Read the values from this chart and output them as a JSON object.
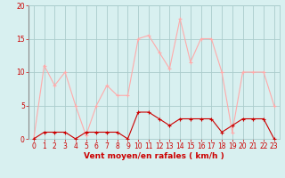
{
  "x": [
    0,
    1,
    2,
    3,
    4,
    5,
    6,
    7,
    8,
    9,
    10,
    11,
    12,
    13,
    14,
    15,
    16,
    17,
    18,
    19,
    20,
    21,
    22,
    23
  ],
  "wind_mean": [
    0,
    1,
    1,
    1,
    0,
    1,
    1,
    1,
    1,
    0,
    4,
    4,
    3,
    2,
    3,
    3,
    3,
    3,
    1,
    2,
    3,
    3,
    3,
    0
  ],
  "wind_gust": [
    0,
    11,
    8,
    10,
    5,
    0.5,
    5,
    8,
    6.5,
    6.5,
    15,
    15.5,
    13,
    10.5,
    18,
    11.5,
    15,
    15,
    10,
    1,
    10,
    10,
    10,
    5
  ],
  "mean_color": "#cc0000",
  "gust_color": "#ffaaaa",
  "bg_color": "#d8f0f0",
  "grid_color": "#aacccc",
  "xlabel": "Vent moyen/en rafales ( km/h )",
  "ylim": [
    0,
    20
  ],
  "yticks": [
    0,
    5,
    10,
    15,
    20
  ],
  "xticks": [
    0,
    1,
    2,
    3,
    4,
    5,
    6,
    7,
    8,
    9,
    10,
    11,
    12,
    13,
    14,
    15,
    16,
    17,
    18,
    19,
    20,
    21,
    22,
    23
  ],
  "label_color": "#cc0000",
  "label_fontsize": 6.5,
  "tick_fontsize": 5.5
}
